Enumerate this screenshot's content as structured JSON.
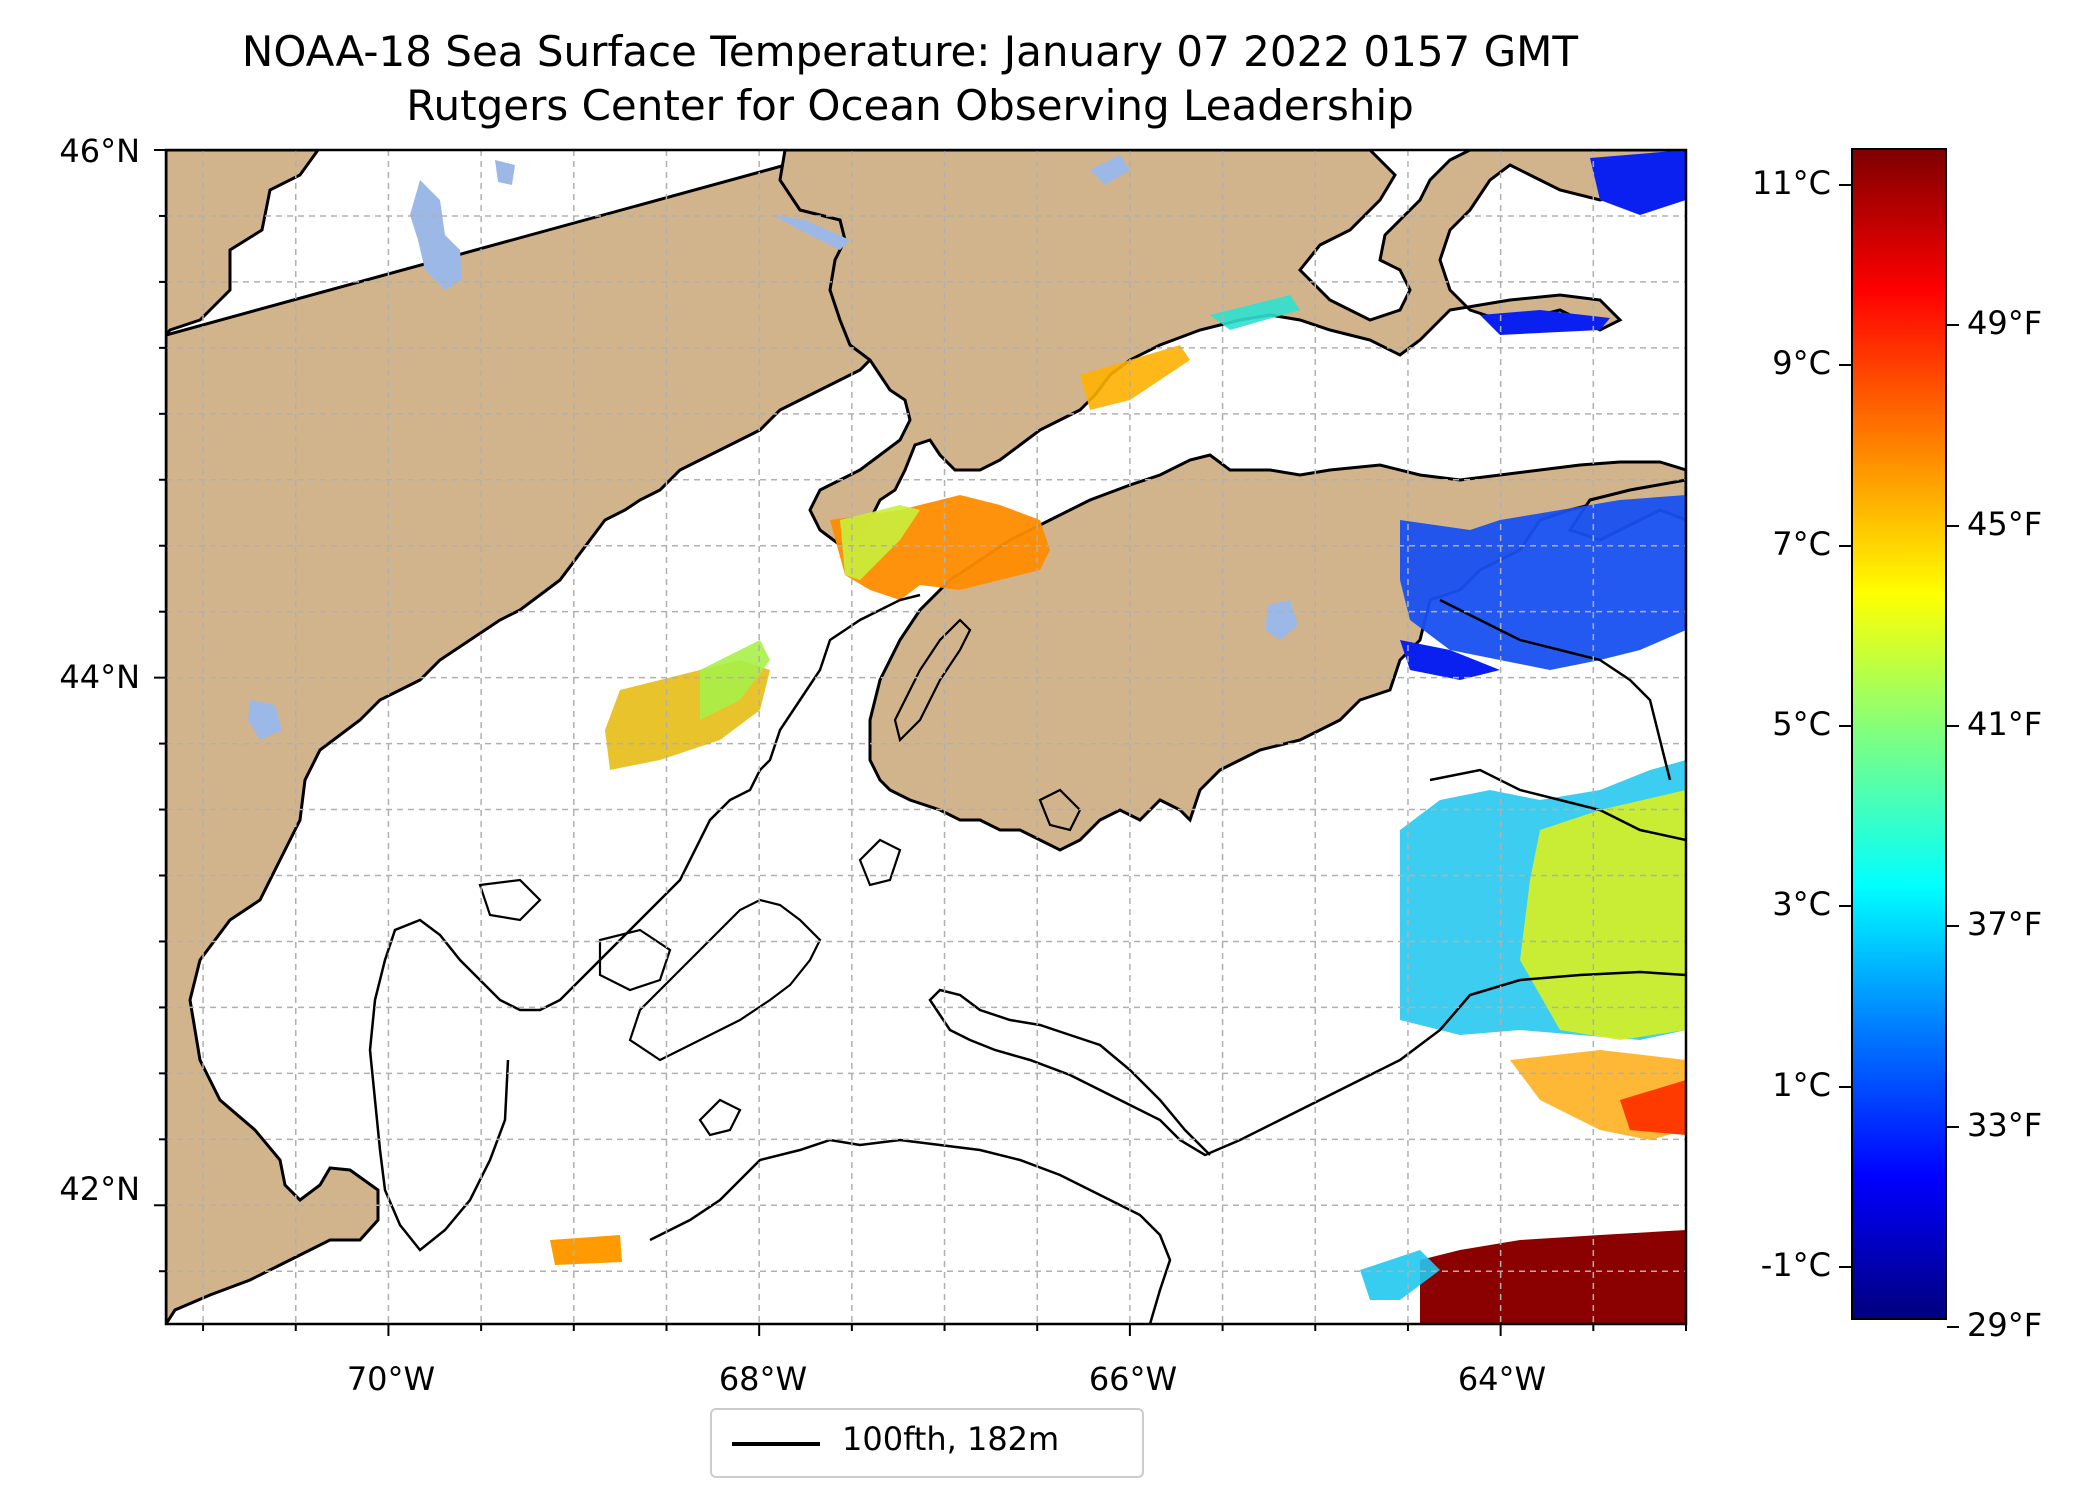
{
  "title": "NOAA-18 Sea Surface Temperature: January 07 2022 0157 GMT",
  "subtitle": "Rutgers Center for Ocean Observing Leadership",
  "map": {
    "extent": {
      "lon_min": -71.2,
      "lon_max": -63.0,
      "lat_min": 41.55,
      "lat_max": 46.0
    },
    "lat_labels": [
      {
        "lat": 46,
        "text": "46°N"
      },
      {
        "lat": 44,
        "text": "44°N"
      },
      {
        "lat": 42,
        "text": "42°N"
      }
    ],
    "lon_labels": [
      {
        "lon": -70,
        "text": "70°W"
      },
      {
        "lon": -68,
        "text": "68°W"
      },
      {
        "lon": -66,
        "text": "66°W"
      },
      {
        "lon": -64,
        "text": "64°W"
      }
    ],
    "land_color": "#d2b48c",
    "lake_color": "#9cb8e6",
    "gridlines": true,
    "legend": {
      "label": "100fth, 182m",
      "line_color": "#000000"
    }
  },
  "colorbar": {
    "celsius": {
      "min": -1.6,
      "max": 11.4,
      "ticks": [
        {
          "v": 11,
          "text": "11°C"
        },
        {
          "v": 9,
          "text": "9°C"
        },
        {
          "v": 7,
          "text": "7°C"
        },
        {
          "v": 5,
          "text": "5°C"
        },
        {
          "v": 3,
          "text": "3°C"
        },
        {
          "v": 1,
          "text": "1°C"
        },
        {
          "v": -1,
          "text": "-1°C"
        }
      ]
    },
    "fahrenheit": {
      "ticks": [
        {
          "v": 49,
          "text": "49°F"
        },
        {
          "v": 45,
          "text": "45°F"
        },
        {
          "v": 41,
          "text": "41°F"
        },
        {
          "v": 37,
          "text": "37°F"
        },
        {
          "v": 33,
          "text": "33°F"
        },
        {
          "v": 29,
          "text": "29°F"
        }
      ]
    },
    "colormap": "jet"
  }
}
